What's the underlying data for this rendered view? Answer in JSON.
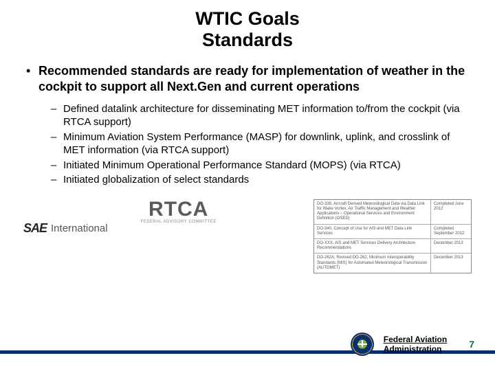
{
  "title_line1": "WTIC Goals",
  "title_line2": "Standards",
  "main_bullet": "Recommended standards are ready for implementation of weather in the cockpit to support all Next.Gen and current operations",
  "sub_bullets": [
    "Defined datalink architecture for disseminating MET information to/from the cockpit (via RTCA support)",
    "Minimum Aviation System Performance (MASP) for downlink, uplink, and crosslink of MET information (via RTCA support)",
    "Initiated Minimum Operational Performance Standard (MOPS) (via RTCA)",
    "Initiated globalization of select standards"
  ],
  "logos": {
    "sae_mark": "SAE",
    "sae_text": "International",
    "rtca_mark": "RTCA",
    "rtca_sub": "FEDERAL ADVISORY COMMITTEE"
  },
  "mini_table": {
    "rows": [
      {
        "c1": "DO-339, Aircraft Derived Meteorological Data via Data Link for Wake Vortex, Air Traffic Management and Weather Applications – Operational Services and Environment Definition (OSED)",
        "c2": "Completed June 2012"
      },
      {
        "c1": "DO-340, Concept of Use for AIS and MET Data Link Services",
        "c2": "Completed September 2012"
      },
      {
        "c1": "DO-XXX, AIS and MET Services Delivery Architecture Recommendations",
        "c2": "December 2013"
      },
      {
        "c1": "DO-262A, Revised DO-262, Minimum Interoperability Standards (MIS) for Automated Meteorological Transmission (AUTOMET)",
        "c2": "December 2013"
      }
    ]
  },
  "footer": {
    "org_line1": "Federal Aviation",
    "org_line2": "Administration",
    "page": "7"
  },
  "colors": {
    "blue_bar": "#0b2e6f",
    "page_num": "#0b6b3a"
  }
}
